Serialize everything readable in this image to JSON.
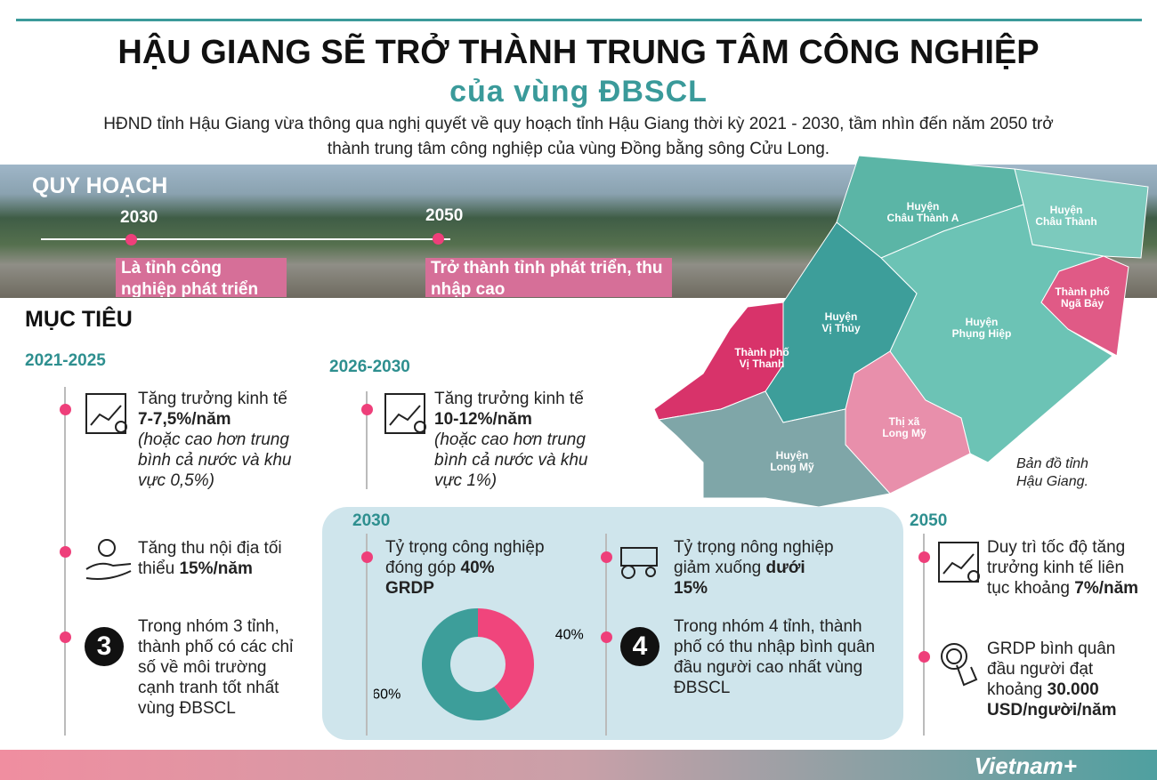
{
  "header": {
    "title": "HẬU GIANG SẼ TRỞ THÀNH TRUNG TÂM CÔNG NGHIỆP",
    "subtitle": "của vùng ĐBSCL",
    "intro": "HĐND tỉnh Hậu Giang vừa thông qua nghị quyết về quy hoạch tỉnh Hậu Giang thời kỳ 2021 - 2030, tầm nhìn đến năm 2050 trở thành trung tâm công nghiệp của vùng Đồng bằng sông Cửu Long."
  },
  "planning": {
    "heading": "QUY HOẠCH",
    "milestones": [
      {
        "year": "2030",
        "text": "Là tỉnh công nghiệp phát triển"
      },
      {
        "year": "2050",
        "text": "Trở thành tỉnh phát triển, thu nhập cao"
      }
    ]
  },
  "goals": {
    "heading": "MỤC TIÊU",
    "periods": [
      {
        "label": "2021-2025",
        "items": [
          {
            "text": "Tăng trưởng kinh tế",
            "highlight": "7-7,5%/năm",
            "note": "(hoặc cao hơn trung bình cả nước và khu vực 0,5%)"
          },
          {
            "text": "Tăng thu nội địa tối thiểu",
            "highlight": "15%/năm"
          },
          {
            "badge": "3",
            "text": "Trong nhóm 3 tỉnh, thành phố có các chỉ số về môi trường cạnh tranh tốt nhất vùng ĐBSCL"
          }
        ]
      },
      {
        "label": "2026-2030",
        "items": [
          {
            "text": "Tăng trưởng kinh tế",
            "highlight": "10-12%/năm",
            "note": "(hoặc cao hơn trung bình cả nước và khu vực 1%)"
          }
        ]
      },
      {
        "label": "2030",
        "items": [
          {
            "text": "Tỷ trọng công nghiệp đóng góp",
            "highlight": "40% GRDP"
          },
          {
            "text": "Tỷ trọng nông nghiệp giảm xuống",
            "highlight": "dưới 15%"
          },
          {
            "badge": "4",
            "text": "Trong nhóm 4 tỉnh, thành phố có thu nhập bình quân đầu người cao nhất vùng ĐBSCL"
          }
        ]
      },
      {
        "label": "2050",
        "items": [
          {
            "text": "Duy trì tốc độ tăng trưởng kinh tế liên tục khoảng",
            "highlight": "7%/năm"
          },
          {
            "text": "GRDP bình quân đầu người đạt khoảng",
            "highlight": "30.000 USD/người/năm"
          }
        ]
      }
    ]
  },
  "donut": {
    "values": [
      40,
      60
    ],
    "value_labels": [
      "40%",
      "60%"
    ],
    "colors": [
      "#f0457c",
      "#3d9e9a"
    ]
  },
  "map": {
    "caption": "Bản đồ tỉnh Hậu Giang.",
    "districts": [
      [
        "Huyện",
        "Châu Thành A"
      ],
      [
        "Huyện",
        "Châu Thành"
      ],
      [
        "Thành phố",
        "Ngã Bảy"
      ],
      [
        "Huyện",
        "Vị Thủy"
      ],
      [
        "Huyện",
        "Phụng Hiệp"
      ],
      [
        "Thành phố",
        "Vị Thanh"
      ],
      [
        "Thị xã",
        "Long Mỹ"
      ],
      [
        "Huyện",
        "Long Mỹ"
      ]
    ]
  },
  "footer": {
    "logo": "Vietnam+"
  }
}
